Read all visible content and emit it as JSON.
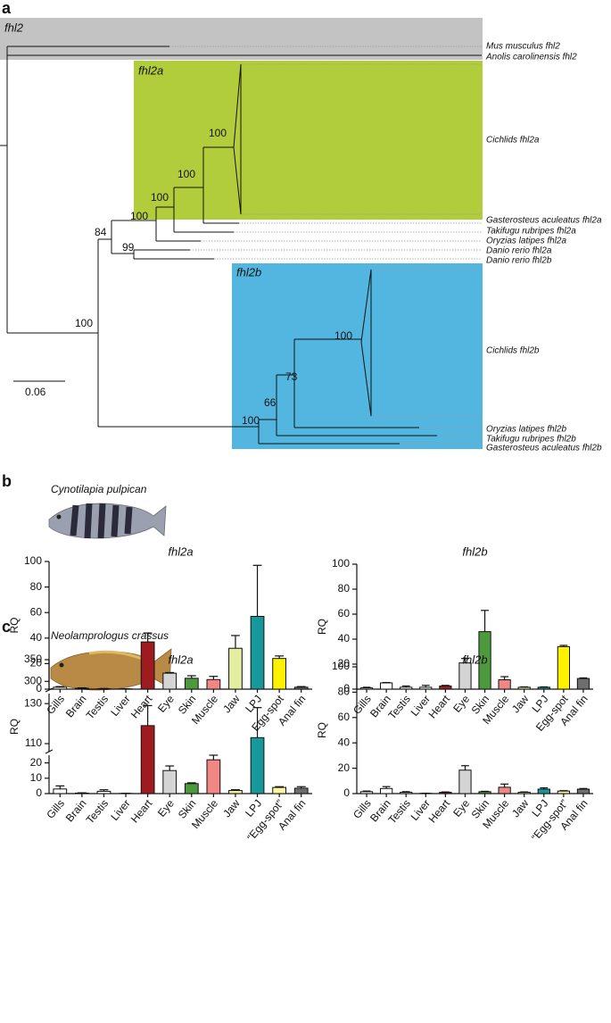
{
  "tree": {
    "panel": "a",
    "clades": [
      "fhl2",
      "fhl2a",
      "fhl2b"
    ],
    "leaves": [
      "Mus musculus fhl2",
      "Anolis carolinensis fhl2",
      "Cichlids fhl2a",
      "Gasterosteus aculeatus fhl2a",
      "Takifugu rubripes fhl2a",
      "Oryzias latipes fhl2a",
      "Danio rerio fhl2a",
      "Danio rerio fhl2b",
      "Cichlids fhl2b",
      "Oryzias latipes fhl2b",
      "Takifugu rubripes fhl2b",
      "Gasterosteus aculeatus fhl2b"
    ],
    "supports": [
      100,
      100,
      100,
      100,
      84,
      99,
      100,
      100,
      73,
      66,
      100
    ],
    "scale": 0.06
  },
  "panels": [
    {
      "label": "b",
      "species": "Cynotilapia pulpican"
    },
    {
      "label": "c",
      "species": "Neolamprologus crassus"
    }
  ],
  "chart_data": [
    {
      "type": "bar",
      "title": "fhl2a",
      "ylabel": "RQ",
      "categories": [
        "Gills",
        "Brain",
        "Testis",
        "Liver",
        "Heart",
        "Eye",
        "Skin",
        "Muscle",
        "Jaw",
        "LPJ",
        "Egg-spot",
        "Anal fin"
      ],
      "values": [
        1.5,
        0.7,
        0.3,
        0.2,
        37,
        12.5,
        8.5,
        7.5,
        32,
        57,
        24,
        1.5
      ],
      "errors": [
        0.5,
        0.3,
        0.2,
        0.1,
        7,
        0.5,
        2,
        2.5,
        10,
        40,
        2,
        0.5
      ],
      "colors": [
        "#ffffff",
        "#ffffff",
        "#ffffff",
        "#ffffff",
        "#9e1b20",
        "#d4d4d4",
        "#4d9a3e",
        "#f08784",
        "#e3eea0",
        "#17999b",
        "#fff200",
        "#6d6e70"
      ],
      "ylim": [
        0,
        100
      ],
      "yticks": [
        0,
        20,
        40,
        60,
        80,
        100
      ]
    },
    {
      "type": "bar",
      "title": "fhl2b",
      "ylabel": "RQ",
      "categories": [
        "Gills",
        "Brain",
        "Testis",
        "Liver",
        "Heart",
        "Eye",
        "Skin",
        "Muscle",
        "Jaw",
        "LPJ",
        "Egg-spot",
        "Anal fin"
      ],
      "values": [
        1,
        5,
        1.5,
        1.5,
        2.5,
        21,
        46,
        7.5,
        1.5,
        1.5,
        34,
        8.5
      ],
      "errors": [
        0.5,
        0.3,
        1,
        1.5,
        0.5,
        3.5,
        17,
        2.5,
        0.3,
        0.3,
        1,
        0.5
      ],
      "colors": [
        "#ffffff",
        "#ffffff",
        "#ffffff",
        "#ffffff",
        "#9e1b20",
        "#d4d4d4",
        "#4d9a3e",
        "#f08784",
        "#e3eea0",
        "#17999b",
        "#fff200",
        "#6d6e70"
      ],
      "ylim": [
        0,
        100
      ],
      "yticks": [
        0,
        20,
        40,
        60,
        80,
        100
      ]
    },
    {
      "type": "bar",
      "title": "fhl2a",
      "ylabel": "RQ",
      "categories": [
        "Gills",
        "Brain",
        "Testis",
        "Liver",
        "Heart",
        "Eye",
        "Skin",
        "Muscle",
        "Jaw",
        "LPJ",
        "“Egg-spot”",
        "Anal fin"
      ],
      "values": [
        3,
        0.3,
        1.5,
        0.1,
        119,
        15,
        6.5,
        22,
        2,
        113,
        4,
        3.5
      ],
      "errors": [
        2,
        0.2,
        1,
        0.1,
        10,
        3,
        0.5,
        3,
        0.5,
        15,
        0.5,
        1
      ],
      "colors": [
        "#ffffff",
        "#ffffff",
        "#ffffff",
        "#ffffff",
        "#9e1b20",
        "#d4d4d4",
        "#4d9a3e",
        "#f08784",
        "#f6f4a6",
        "#17999b",
        "#fdf6a0",
        "#6d6e70"
      ],
      "ylim": [
        0,
        350
      ],
      "axis_segments": [
        [
          0,
          25
        ],
        [
          106,
          135
        ],
        [
          280,
          350
        ]
      ],
      "yticks": [
        0,
        10,
        20,
        110,
        130,
        300,
        350
      ]
    },
    {
      "type": "bar",
      "title": "fhl2b",
      "ylabel": "RQ",
      "categories": [
        "Gills",
        "Brain",
        "Testis",
        "Liver",
        "Heart",
        "Eye",
        "Skin",
        "Muscle",
        "Jaw",
        "LPJ",
        "“Egg-spot”",
        "Anal fin"
      ],
      "values": [
        1.5,
        4,
        1,
        0.2,
        1,
        18.5,
        1.5,
        5,
        1,
        3.5,
        2,
        3.5
      ],
      "errors": [
        0.5,
        1.5,
        0.5,
        0.1,
        0.3,
        3.5,
        0.3,
        2.5,
        0.3,
        1,
        0.3,
        0.5
      ],
      "colors": [
        "#ffffff",
        "#ffffff",
        "#ffffff",
        "#ffffff",
        "#9e1b20",
        "#d4d4d4",
        "#4d9a3e",
        "#f08784",
        "#f6f4a6",
        "#17999b",
        "#fdf6a0",
        "#6d6e70"
      ],
      "ylim": [
        0,
        100
      ],
      "yticks": [
        0,
        20,
        40,
        60,
        80,
        100
      ]
    }
  ]
}
